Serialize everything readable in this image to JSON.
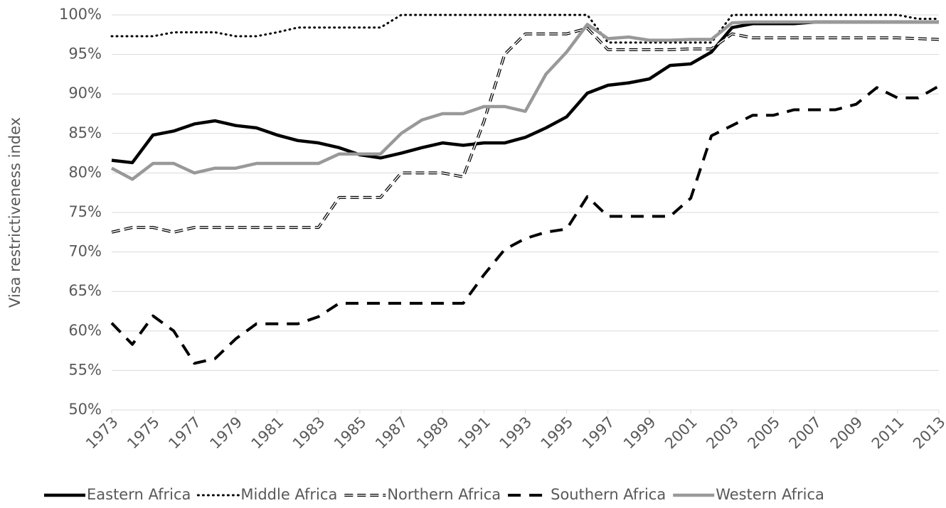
{
  "chart_data": {
    "type": "line",
    "y_label": "Visa restrictiveness index",
    "x": [
      1973,
      1974,
      1975,
      1976,
      1977,
      1978,
      1979,
      1980,
      1981,
      1982,
      1983,
      1984,
      1985,
      1986,
      1987,
      1988,
      1989,
      1990,
      1991,
      1992,
      1993,
      1994,
      1995,
      1996,
      1997,
      1998,
      1999,
      2000,
      2001,
      2002,
      2003,
      2004,
      2005,
      2006,
      2007,
      2008,
      2009,
      2010,
      2011,
      2012,
      2013
    ],
    "xlim": [
      1973,
      2013
    ],
    "xticks": [
      1973,
      1975,
      1977,
      1979,
      1981,
      1983,
      1985,
      1987,
      1989,
      1991,
      1993,
      1995,
      1997,
      1999,
      2001,
      2003,
      2005,
      2007,
      2009,
      2011,
      2013
    ],
    "ylim": [
      50,
      100
    ],
    "yticks": [
      {
        "value": 50,
        "label": "50%"
      },
      {
        "value": 55,
        "label": "55%"
      },
      {
        "value": 60,
        "label": "60%"
      },
      {
        "value": 65,
        "label": "65%"
      },
      {
        "value": 70,
        "label": "70%"
      },
      {
        "value": 75,
        "label": "75%"
      },
      {
        "value": 80,
        "label": "80%"
      },
      {
        "value": 85,
        "label": "85%"
      },
      {
        "value": 90,
        "label": "90%"
      },
      {
        "value": 95,
        "label": "95%"
      },
      {
        "value": 100,
        "label": "100%"
      }
    ],
    "grid": true,
    "legend": "bottom",
    "series": [
      {
        "name": "Eastern Africa",
        "color": "#000000",
        "style": "solid",
        "values": [
          81.6,
          81.3,
          84.8,
          85.3,
          86.2,
          86.6,
          86.0,
          85.7,
          84.8,
          84.1,
          83.8,
          83.2,
          82.3,
          81.9,
          82.5,
          83.2,
          83.8,
          83.5,
          83.8,
          83.8,
          84.5,
          85.7,
          87.1,
          90.1,
          91.1,
          91.4,
          91.9,
          93.6,
          93.8,
          95.3,
          98.4,
          98.9,
          98.9,
          98.9,
          99.1,
          99.1,
          99.1,
          99.1,
          99.1,
          99.1,
          99.1
        ]
      },
      {
        "name": "Middle Africa",
        "color": "#000000",
        "style": "dotted",
        "values": [
          97.3,
          97.3,
          97.3,
          97.8,
          97.8,
          97.8,
          97.3,
          97.3,
          97.8,
          98.4,
          98.4,
          98.4,
          98.4,
          98.4,
          100,
          100,
          100,
          100,
          100,
          100,
          100,
          100,
          100,
          100,
          96.5,
          96.5,
          96.5,
          96.5,
          96.5,
          96.5,
          100,
          100,
          100,
          100,
          100,
          100,
          100,
          100,
          100,
          99.5,
          99.5
        ]
      },
      {
        "name": "Northern Africa",
        "color": "#000000",
        "style": "double-dash",
        "values": [
          72.5,
          73.1,
          73.1,
          72.5,
          73.1,
          73.1,
          73.1,
          73.1,
          73.1,
          73.1,
          73.1,
          76.9,
          76.9,
          76.9,
          80,
          80,
          80,
          79.5,
          86.5,
          95,
          97.6,
          97.6,
          97.6,
          98.3,
          95.6,
          95.6,
          95.6,
          95.6,
          95.7,
          95.7,
          97.6,
          97.1,
          97.1,
          97.1,
          97.1,
          97.1,
          97.1,
          97.1,
          97.1,
          97.0,
          96.9
        ]
      },
      {
        "name": "Southern Africa",
        "color": "#000000",
        "style": "dashed",
        "values": [
          61,
          58.3,
          61.9,
          60,
          55.9,
          56.5,
          59,
          60.9,
          60.9,
          60.9,
          61.8,
          63.5,
          63.5,
          63.5,
          63.5,
          63.5,
          63.5,
          63.5,
          67.1,
          70.3,
          71.7,
          72.5,
          72.9,
          77,
          74.5,
          74.5,
          74.5,
          74.5,
          76.8,
          84.7,
          86,
          87.3,
          87.3,
          88,
          88,
          88,
          88.7,
          90.8,
          89.5,
          89.5,
          91
        ]
      },
      {
        "name": "Western Africa",
        "color": "#999999",
        "style": "solid",
        "values": [
          80.6,
          79.2,
          81.2,
          81.2,
          80,
          80.6,
          80.6,
          81.2,
          81.2,
          81.2,
          81.2,
          82.4,
          82.4,
          82.4,
          85,
          86.7,
          87.5,
          87.5,
          88.4,
          88.4,
          87.8,
          92.5,
          95.3,
          98.8,
          97,
          97.2,
          96.8,
          96.8,
          96.9,
          96.9,
          99,
          99.1,
          99.1,
          99.1,
          99.1,
          99.1,
          99.1,
          99.1,
          99.1,
          99.1,
          99.1
        ]
      }
    ]
  }
}
